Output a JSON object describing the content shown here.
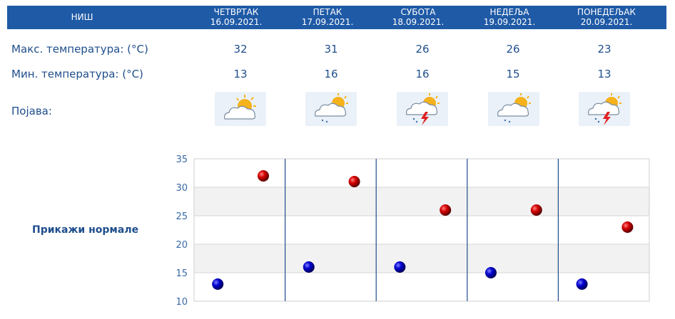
{
  "city": "НИШ",
  "days": [
    {
      "name": "ЧЕТВРТАК",
      "date": "16.09.2021.",
      "max": 32,
      "min": 13,
      "icon": "sun-cloud-icon"
    },
    {
      "name": "ПЕТАК",
      "date": "17.09.2021.",
      "max": 31,
      "min": 16,
      "icon": "sun-cloud-light-rain-icon"
    },
    {
      "name": "СУБОТА",
      "date": "18.09.2021.",
      "max": 26,
      "min": 16,
      "icon": "sun-cloud-thunderstorm-icon"
    },
    {
      "name": "НЕДЕЉА",
      "date": "19.09.2021.",
      "max": 26,
      "min": 15,
      "icon": "sun-cloud-light-rain-icon"
    },
    {
      "name": "ПОНЕДЕЉАК",
      "date": "20.09.2021.",
      "max": 23,
      "min": 13,
      "icon": "sun-cloud-thunderstorm-icon"
    }
  ],
  "labels": {
    "max": "Макс. температура: (°C)",
    "min": "Мин. температура: (°C)",
    "phenomenon": "Појава:",
    "show_normals": "Прикажи нормале"
  },
  "colors": {
    "header_bg": "#1f5aa6",
    "text": "#1f4e8c",
    "max_marker": "#cc0000",
    "min_marker": "#0000cc",
    "grid_band": "#f2f2f2",
    "divider": "#1f4e8c"
  },
  "chart_data": {
    "type": "scatter",
    "categories": [
      "16.09.2021.",
      "17.09.2021.",
      "18.09.2021.",
      "19.09.2021.",
      "20.09.2021."
    ],
    "series": [
      {
        "values": [
          32,
          31,
          26,
          26,
          23
        ],
        "color": "#cc0000"
      },
      {
        "values": [
          13,
          16,
          16,
          15,
          13
        ],
        "color": "#0000cc"
      }
    ],
    "yticks": [
      10,
      15,
      20,
      25,
      30,
      35
    ],
    "ylim": [
      10,
      35
    ],
    "grid": true,
    "title": "",
    "xlabel": "",
    "ylabel": ""
  }
}
